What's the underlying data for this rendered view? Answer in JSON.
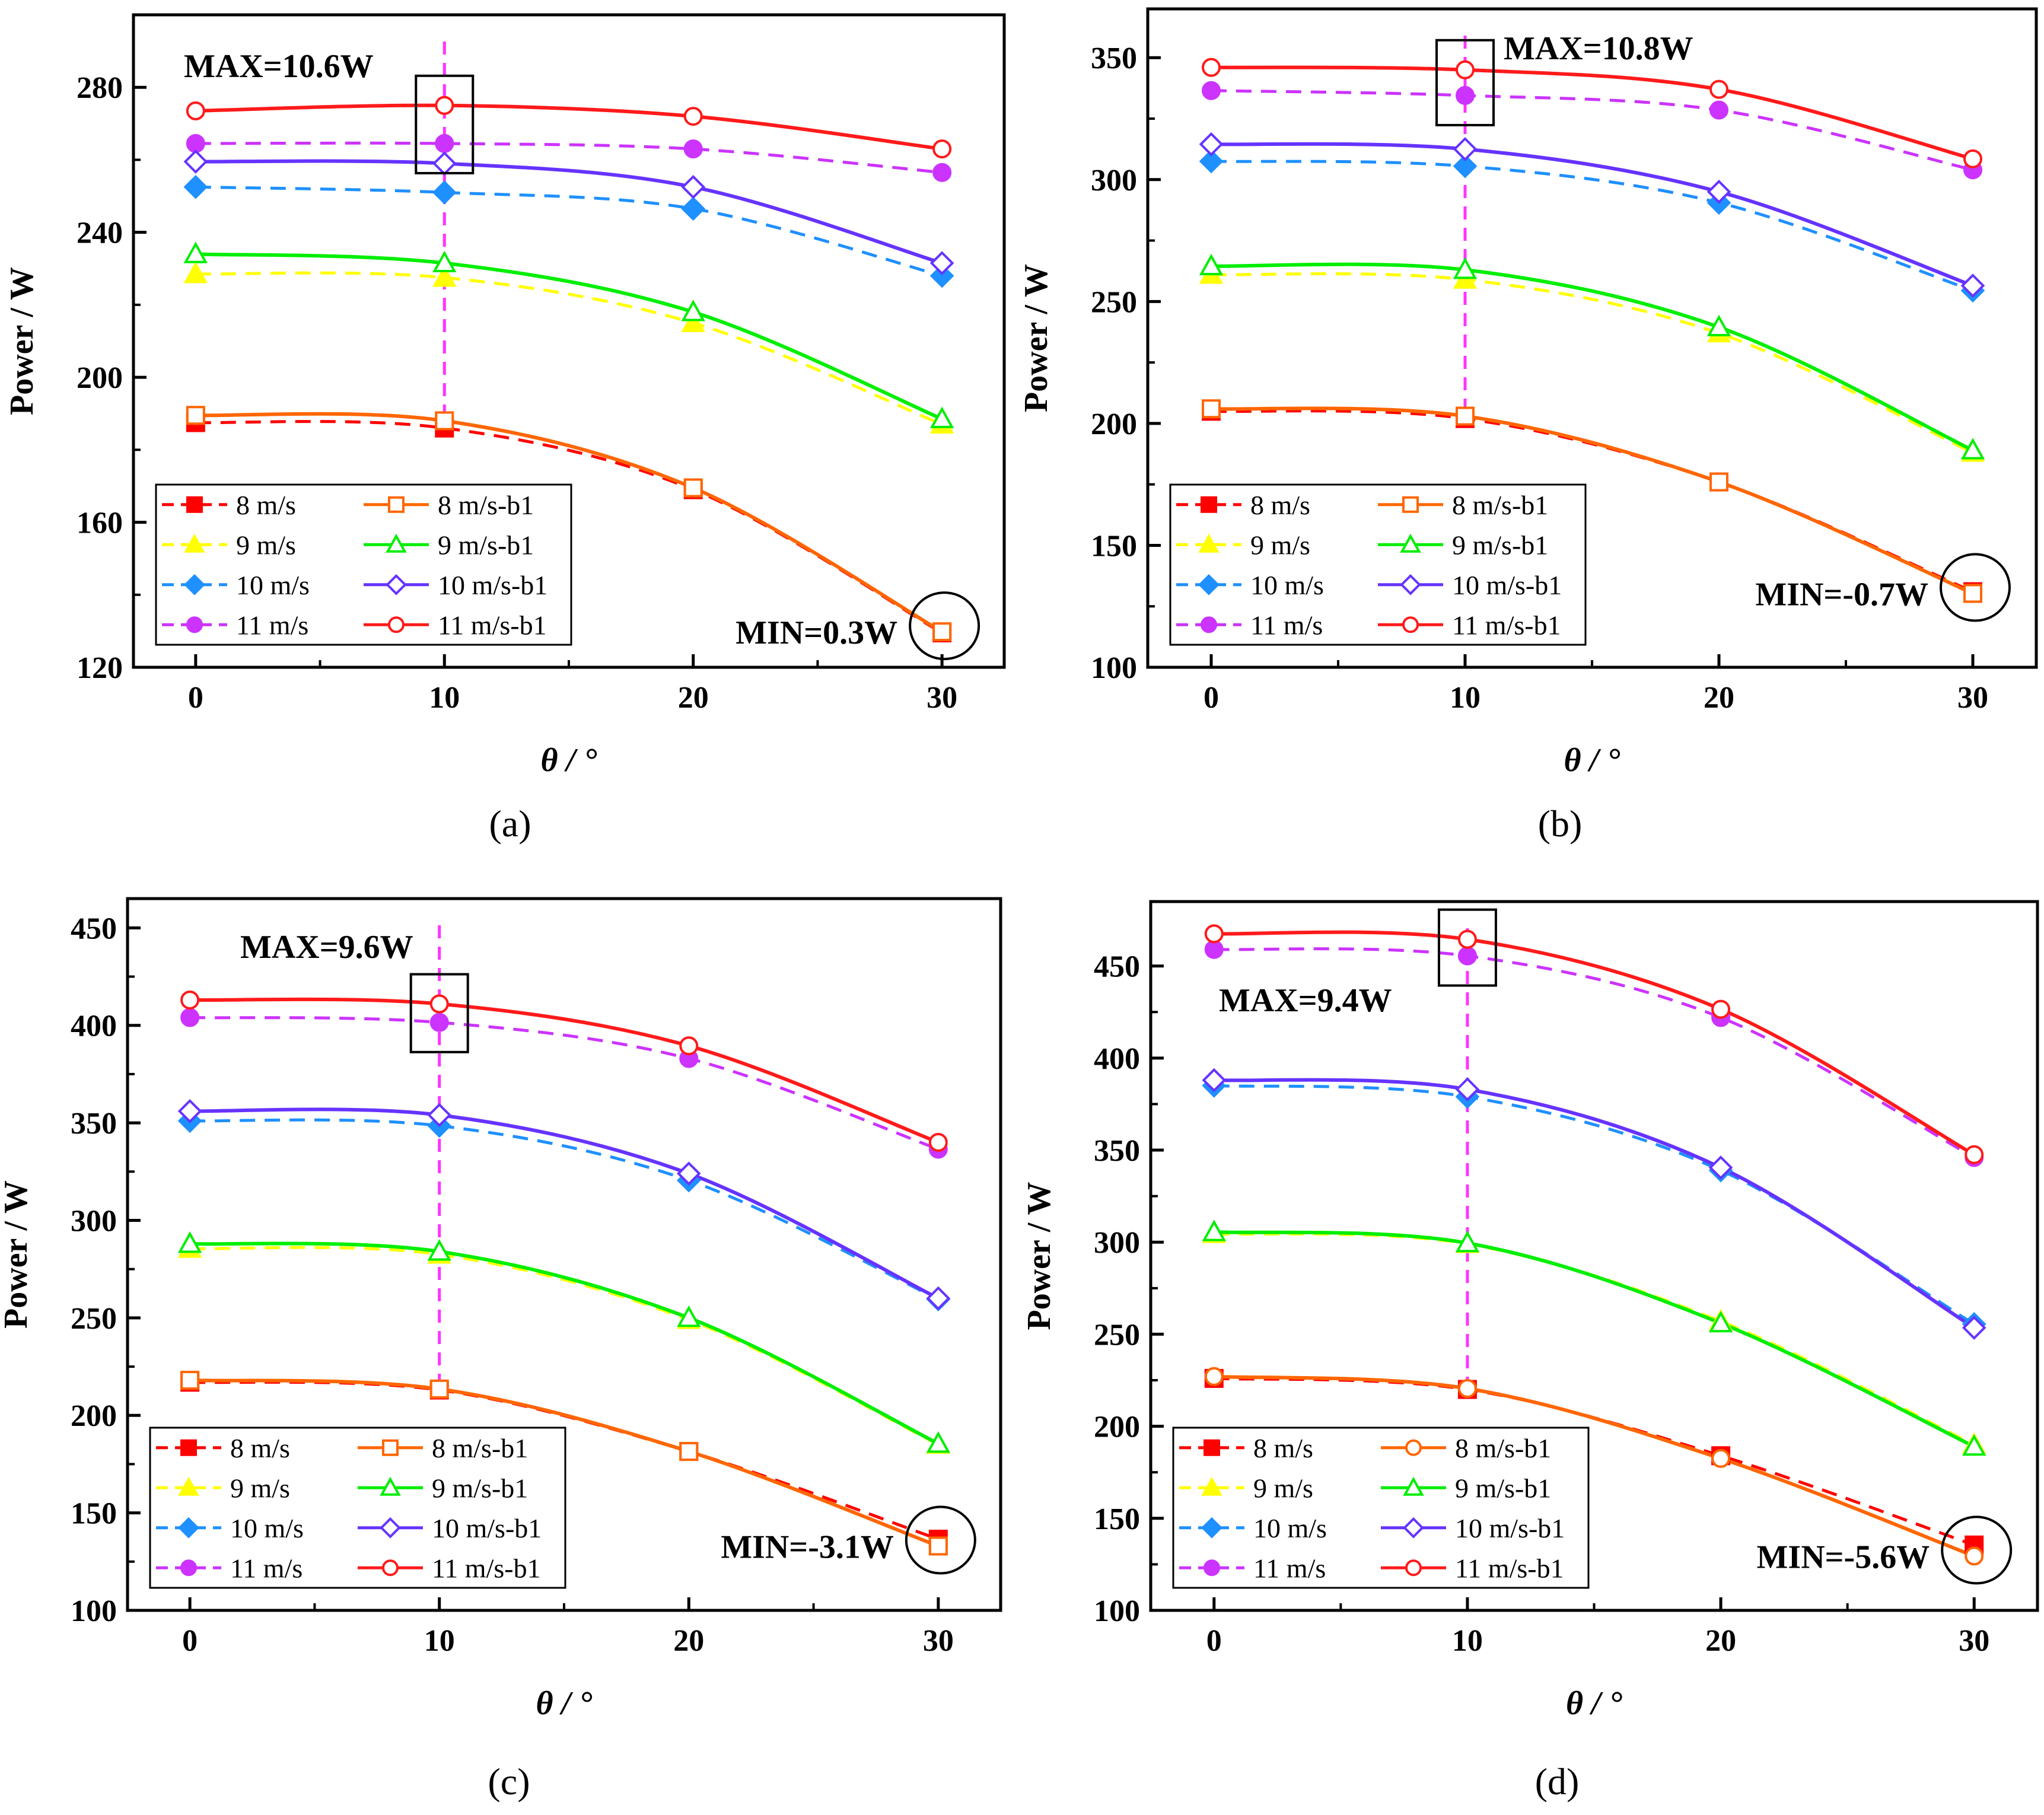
{
  "figure": {
    "legend_labels": [
      "8 m/s",
      "9 m/s",
      "10 m/s",
      "11 m/s",
      "8 m/s-b1",
      "9 m/s-b1",
      "10 m/s-b1",
      "11 m/s-b1"
    ],
    "series_colors": {
      "8": "#ff0000",
      "9": "#ffff00",
      "10": "#1e90ff",
      "11": "#cc33ff",
      "8b": "#ff6600",
      "9b": "#00ee00",
      "10b": "#6633ff",
      "11b": "#ff1a1a",
      "guide": "#ff33ff"
    }
  },
  "chart_data": [
    {
      "type": "line",
      "panel": "a",
      "caption": "(a)",
      "xlabel": "θ / °",
      "ylabel": "Power / W",
      "x": [
        0,
        10,
        20,
        30
      ],
      "xlim": [
        -2.5,
        32.5
      ],
      "ylim": [
        120,
        300
      ],
      "yticks": [
        120,
        160,
        200,
        240,
        280
      ],
      "xticks": [
        0,
        10,
        20,
        30
      ],
      "max_annotation": "MAX=10.6W",
      "min_annotation": "MIN=0.3W",
      "legend_position": "bottom-left",
      "min_label_position": "bottom-right",
      "series": [
        {
          "name": "8 m/s",
          "values": [
            187.5,
            186.0,
            169.0,
            129.5
          ]
        },
        {
          "name": "9 m/s",
          "values": [
            228.5,
            227.5,
            215.0,
            187.0
          ]
        },
        {
          "name": "10 m/s",
          "values": [
            252.5,
            251.0,
            246.5,
            228.0
          ]
        },
        {
          "name": "11 m/s",
          "values": [
            264.5,
            264.5,
            263.0,
            256.5
          ]
        },
        {
          "name": "8 m/s-b1",
          "values": [
            189.5,
            188.0,
            169.5,
            129.8
          ]
        },
        {
          "name": "9 m/s-b1",
          "values": [
            234.0,
            231.5,
            218.0,
            188.5
          ]
        },
        {
          "name": "10 m/s-b1",
          "values": [
            259.5,
            259.0,
            252.5,
            231.5
          ]
        },
        {
          "name": "11 m/s-b1",
          "values": [
            273.5,
            275.0,
            272.0,
            263.0
          ]
        }
      ]
    },
    {
      "type": "line",
      "panel": "b",
      "caption": "(b)",
      "xlabel": "θ / °",
      "ylabel": "Power / W",
      "x": [
        0,
        10,
        20,
        30
      ],
      "xlim": [
        -2.5,
        32.5
      ],
      "ylim": [
        100,
        370
      ],
      "yticks": [
        100,
        150,
        200,
        250,
        300,
        350
      ],
      "xticks": [
        0,
        10,
        20,
        30
      ],
      "max_annotation": "MAX=10.8W",
      "min_annotation": "MIN=-0.7W",
      "legend_position": "bottom-left",
      "min_label_position": "bottom-right",
      "series": [
        {
          "name": "8 m/s",
          "values": [
            205.0,
            202.0,
            176.0,
            131.0
          ]
        },
        {
          "name": "9 m/s",
          "values": [
            261.0,
            259.0,
            237.0,
            188.0
          ]
        },
        {
          "name": "10 m/s",
          "values": [
            307.5,
            305.5,
            290.5,
            254.5
          ]
        },
        {
          "name": "11 m/s",
          "values": [
            336.5,
            334.5,
            328.5,
            304.0
          ]
        },
        {
          "name": "8 m/s-b1",
          "values": [
            206.0,
            203.0,
            176.0,
            130.3
          ]
        },
        {
          "name": "9 m/s-b1",
          "values": [
            264.5,
            263.0,
            239.5,
            189.0
          ]
        },
        {
          "name": "10 m/s-b1",
          "values": [
            314.5,
            312.5,
            295.0,
            256.5
          ]
        },
        {
          "name": "11 m/s-b1",
          "values": [
            346.0,
            345.0,
            337.0,
            308.5
          ]
        }
      ]
    },
    {
      "type": "line",
      "panel": "c",
      "caption": "(c)",
      "xlabel": "θ / °",
      "ylabel": "Power / W",
      "x": [
        0,
        10,
        20,
        30
      ],
      "xlim": [
        -2.5,
        32.5
      ],
      "ylim": [
        100,
        465
      ],
      "yticks": [
        100,
        150,
        200,
        250,
        300,
        350,
        400,
        450
      ],
      "xticks": [
        0,
        10,
        20,
        30
      ],
      "max_annotation": "MAX=9.6W",
      "min_annotation": "MIN=-3.1W",
      "legend_position": "bottom-left",
      "min_label_position": "bottom-right",
      "series": [
        {
          "name": "8 m/s",
          "values": [
            217.0,
            213.0,
            181.5,
            136.5
          ]
        },
        {
          "name": "9 m/s",
          "values": [
            285.5,
            282.5,
            249.0,
            185.0
          ]
        },
        {
          "name": "10 m/s",
          "values": [
            351.0,
            348.5,
            320.5,
            259.5
          ]
        },
        {
          "name": "11 m/s",
          "values": [
            404.0,
            401.5,
            383.0,
            336.5
          ]
        },
        {
          "name": "8 m/s-b1",
          "values": [
            218.0,
            213.5,
            181.5,
            133.0
          ]
        },
        {
          "name": "9 m/s-b1",
          "values": [
            288.0,
            284.0,
            250.0,
            185.5
          ]
        },
        {
          "name": "10 m/s-b1",
          "values": [
            356.0,
            354.0,
            324.0,
            260.0
          ]
        },
        {
          "name": "11 m/s-b1",
          "values": [
            413.0,
            411.0,
            389.5,
            340.0
          ]
        }
      ]
    },
    {
      "type": "line",
      "panel": "d",
      "caption": "(d)",
      "xlabel": "θ / °",
      "ylabel": "Power / W",
      "x": [
        0,
        10,
        20,
        30
      ],
      "xlim": [
        -2.5,
        32.5
      ],
      "ylim": [
        100,
        485
      ],
      "yticks": [
        100,
        150,
        200,
        250,
        300,
        350,
        400,
        450
      ],
      "xticks": [
        0,
        10,
        20,
        30
      ],
      "max_annotation": "MAX=9.4W",
      "min_annotation": "MIN=-5.6W",
      "legend_position": "bottom-left",
      "min_label_position": "bottom-right",
      "series": [
        {
          "name": "8 m/s",
          "values": [
            226.0,
            220.0,
            184.0,
            135.5
          ]
        },
        {
          "name": "9 m/s",
          "values": [
            304.5,
            299.0,
            257.0,
            190.0
          ]
        },
        {
          "name": "10 m/s",
          "values": [
            385.0,
            379.0,
            339.0,
            255.5
          ]
        },
        {
          "name": "11 m/s",
          "values": [
            459.0,
            455.5,
            422.0,
            346.0
          ]
        },
        {
          "name": "8 m/s-b1",
          "values": [
            227.0,
            220.5,
            182.5,
            129.5
          ]
        },
        {
          "name": "9 m/s-b1",
          "values": [
            305.5,
            299.5,
            256.0,
            189.0
          ]
        },
        {
          "name": "10 m/s-b1",
          "values": [
            388.0,
            383.0,
            340.5,
            253.5
          ]
        },
        {
          "name": "11 m/s-b1",
          "values": [
            467.5,
            464.5,
            426.5,
            347.5
          ]
        }
      ]
    }
  ]
}
